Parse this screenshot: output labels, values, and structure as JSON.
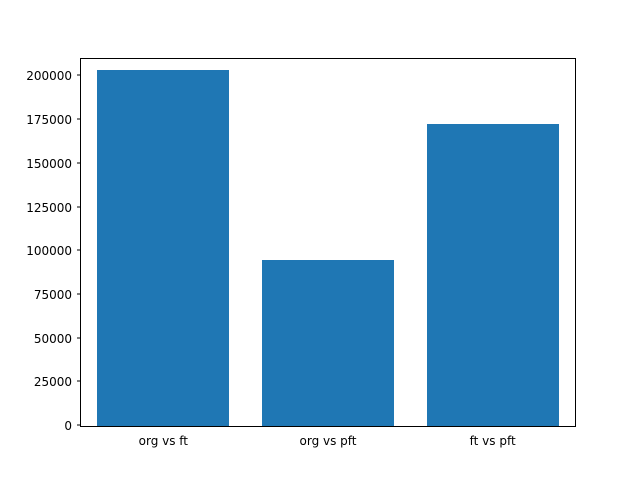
{
  "chart_data": {
    "type": "bar",
    "categories": [
      "org vs ft",
      "org vs pft",
      "ft vs pft"
    ],
    "values": [
      204000,
      95000,
      173000
    ],
    "title": "",
    "xlabel": "",
    "ylabel": "",
    "ylim": [
      0,
      210000
    ],
    "yticks": [
      0,
      25000,
      50000,
      75000,
      100000,
      125000,
      150000,
      175000,
      200000
    ],
    "bar_color": "#1f77b4",
    "bar_width_fraction": 0.8,
    "grid": false,
    "legend": false,
    "background_color": "#ffffff",
    "axes_color": "#000000"
  }
}
